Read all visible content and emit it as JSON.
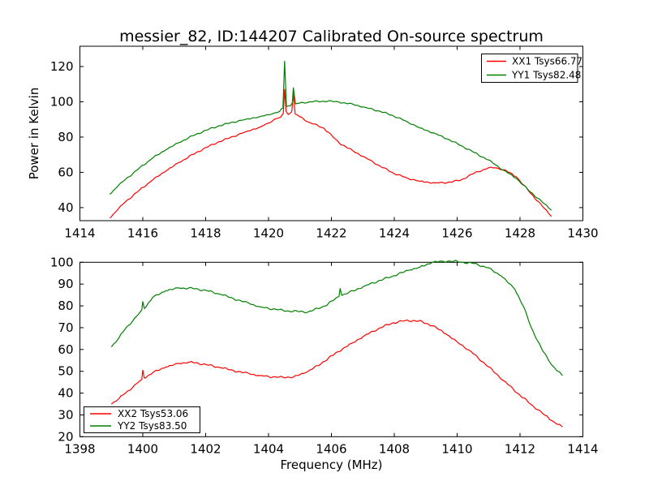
{
  "figure": {
    "title": "messier_82, ID:144207 Calibrated On-source spectrum"
  },
  "chart_data": [
    {
      "type": "line",
      "title": "messier_82, ID:144207 Calibrated On-source spectrum",
      "xlabel": "",
      "ylabel": "Power in Kelvin",
      "xlim": [
        1414,
        1430
      ],
      "ylim": [
        32.6,
        131.5
      ],
      "xticks": [
        1414,
        1416,
        1418,
        1420,
        1422,
        1424,
        1426,
        1428,
        1430
      ],
      "yticks": [
        40,
        60,
        80,
        100,
        120
      ],
      "grid": false,
      "legend": {
        "position": "upper right",
        "entries": [
          {
            "label": "XX1 Tsys66.77",
            "color": "#ff0000"
          },
          {
            "label": "YY1 Tsys82.48",
            "color": "#008000"
          }
        ]
      },
      "series": [
        {
          "name": "XX1 Tsys66.77",
          "color": "#ff0000",
          "points": [
            [
              1414.95,
              34.1
            ],
            [
              1415.2,
              38.8
            ],
            [
              1415.45,
              43.3
            ],
            [
              1415.9,
              50.0
            ],
            [
              1416.31,
              55.6
            ],
            [
              1416.75,
              61.0
            ],
            [
              1417.17,
              65.7
            ],
            [
              1417.6,
              70.2
            ],
            [
              1418.03,
              74.2
            ],
            [
              1418.45,
              77.5
            ],
            [
              1418.89,
              80.4
            ],
            [
              1419.3,
              83.2
            ],
            [
              1419.75,
              85.8
            ],
            [
              1420.0,
              88.0
            ],
            [
              1420.2,
              90.3
            ],
            [
              1420.38,
              91.2
            ],
            [
              1420.47,
              93.5
            ],
            [
              1420.51,
              107.0
            ],
            [
              1420.56,
              94.5
            ],
            [
              1420.63,
              92.8
            ],
            [
              1420.74,
              94.5
            ],
            [
              1420.79,
              104.5
            ],
            [
              1420.85,
              93.0
            ],
            [
              1421.0,
              91.5
            ],
            [
              1421.3,
              88.3
            ],
            [
              1421.76,
              85.1
            ],
            [
              1422.25,
              76.6
            ],
            [
              1422.7,
              72.0
            ],
            [
              1423.11,
              68.1
            ],
            [
              1423.55,
              63.5
            ],
            [
              1423.97,
              59.6
            ],
            [
              1424.4,
              56.8
            ],
            [
              1424.83,
              54.9
            ],
            [
              1425.3,
              54.0
            ],
            [
              1425.69,
              54.2
            ],
            [
              1426.12,
              55.6
            ],
            [
              1426.55,
              59.6
            ],
            [
              1426.98,
              62.4
            ],
            [
              1427.2,
              62.6
            ],
            [
              1427.5,
              61.5
            ],
            [
              1427.88,
              57.5
            ],
            [
              1428.27,
              49.5
            ],
            [
              1428.7,
              41.0
            ],
            [
              1429.0,
              35.0
            ]
          ]
        },
        {
          "name": "YY1 Tsys82.48",
          "color": "#008000",
          "points": [
            [
              1414.95,
              47.6
            ],
            [
              1415.2,
              52.0
            ],
            [
              1415.45,
              56.0
            ],
            [
              1415.9,
              62.5
            ],
            [
              1416.31,
              68.0
            ],
            [
              1416.75,
              73.0
            ],
            [
              1417.17,
              77.0
            ],
            [
              1417.6,
              80.8
            ],
            [
              1418.03,
              84.0
            ],
            [
              1418.45,
              86.5
            ],
            [
              1418.89,
              88.5
            ],
            [
              1419.3,
              90.2
            ],
            [
              1419.75,
              91.7
            ],
            [
              1420.1,
              93.0
            ],
            [
              1420.35,
              94.5
            ],
            [
              1420.46,
              96.5
            ],
            [
              1420.51,
              123.0
            ],
            [
              1420.57,
              97.3
            ],
            [
              1420.7,
              97.8
            ],
            [
              1420.76,
              99.5
            ],
            [
              1420.79,
              108.0
            ],
            [
              1420.86,
              98.8
            ],
            [
              1421.0,
              99.3
            ],
            [
              1421.3,
              100.0
            ],
            [
              1421.9,
              100.4
            ],
            [
              1422.25,
              99.8
            ],
            [
              1422.7,
              98.5
            ],
            [
              1423.11,
              96.7
            ],
            [
              1423.55,
              94.6
            ],
            [
              1423.97,
              92.1
            ],
            [
              1424.4,
              88.8
            ],
            [
              1424.83,
              85.1
            ],
            [
              1425.3,
              82.0
            ],
            [
              1425.69,
              78.9
            ],
            [
              1426.12,
              75.2
            ],
            [
              1426.55,
              71.2
            ],
            [
              1426.98,
              67.1
            ],
            [
              1427.2,
              64.5
            ],
            [
              1427.5,
              61.0
            ],
            [
              1427.88,
              56.6
            ],
            [
              1428.27,
              49.8
            ],
            [
              1428.7,
              43.3
            ],
            [
              1429.0,
              38.5
            ]
          ]
        }
      ]
    },
    {
      "type": "line",
      "title": "",
      "xlabel": "Frequency (MHz)",
      "ylabel": "",
      "xlim": [
        1398,
        1414
      ],
      "ylim": [
        20,
        100
      ],
      "xticks": [
        1398,
        1400,
        1402,
        1404,
        1406,
        1408,
        1410,
        1412,
        1414
      ],
      "yticks": [
        20,
        30,
        40,
        50,
        60,
        70,
        80,
        90,
        100
      ],
      "grid": false,
      "legend": {
        "position": "lower left",
        "entries": [
          {
            "label": "XX2 Tsys53.06",
            "color": "#ff0000"
          },
          {
            "label": "YY2 Tsys83.50",
            "color": "#008000"
          }
        ]
      },
      "series": [
        {
          "name": "XX2 Tsys53.06",
          "color": "#ff0000",
          "points": [
            [
              1399.0,
              35.0
            ],
            [
              1399.25,
              37.6
            ],
            [
              1399.45,
              40.0
            ],
            [
              1399.7,
              43.0
            ],
            [
              1399.88,
              45.3
            ],
            [
              1399.97,
              46.3
            ],
            [
              1400.0,
              50.5
            ],
            [
              1400.05,
              46.9
            ],
            [
              1400.31,
              49.3
            ],
            [
              1400.74,
              52.0
            ],
            [
              1401.17,
              53.6
            ],
            [
              1401.5,
              54.3
            ],
            [
              1402.03,
              53.0
            ],
            [
              1402.5,
              51.6
            ],
            [
              1402.89,
              50.3
            ],
            [
              1403.4,
              48.8
            ],
            [
              1403.75,
              48.0
            ],
            [
              1404.3,
              47.2
            ],
            [
              1404.8,
              47.4
            ],
            [
              1405.2,
              49.5
            ],
            [
              1405.57,
              52.6
            ],
            [
              1406.21,
              59.0
            ],
            [
              1406.64,
              62.8
            ],
            [
              1407.07,
              66.5
            ],
            [
              1407.5,
              69.6
            ],
            [
              1407.93,
              72.1
            ],
            [
              1408.36,
              73.3
            ],
            [
              1408.79,
              73.1
            ],
            [
              1409.22,
              70.9
            ],
            [
              1409.65,
              67.1
            ],
            [
              1410.0,
              63.5
            ],
            [
              1410.4,
              59.5
            ],
            [
              1411.0,
              52.0
            ],
            [
              1411.5,
              45.5
            ],
            [
              1412.0,
              39.0
            ],
            [
              1412.4,
              34.3
            ],
            [
              1412.8,
              29.8
            ],
            [
              1413.1,
              26.6
            ],
            [
              1413.35,
              24.5
            ]
          ]
        },
        {
          "name": "YY2 Tsys83.50",
          "color": "#008000",
          "points": [
            [
              1399.0,
              61.2
            ],
            [
              1399.25,
              65.5
            ],
            [
              1399.45,
              69.6
            ],
            [
              1399.7,
              73.5
            ],
            [
              1399.88,
              76.5
            ],
            [
              1399.97,
              78.2
            ],
            [
              1400.0,
              82.0
            ],
            [
              1400.05,
              78.8
            ],
            [
              1400.31,
              83.8
            ],
            [
              1400.74,
              87.0
            ],
            [
              1401.17,
              88.2
            ],
            [
              1401.6,
              88.0
            ],
            [
              1402.03,
              87.0
            ],
            [
              1402.5,
              85.2
            ],
            [
              1402.89,
              83.3
            ],
            [
              1403.4,
              81.0
            ],
            [
              1403.75,
              79.5
            ],
            [
              1404.3,
              78.2
            ],
            [
              1404.61,
              77.7
            ],
            [
              1405.26,
              77.2
            ],
            [
              1405.8,
              80.0
            ],
            [
              1406.24,
              84.3
            ],
            [
              1406.28,
              88.0
            ],
            [
              1406.33,
              84.8
            ],
            [
              1406.7,
              86.9
            ],
            [
              1407.1,
              89.4
            ],
            [
              1407.97,
              93.8
            ],
            [
              1408.5,
              96.5
            ],
            [
              1408.82,
              97.8
            ],
            [
              1409.2,
              99.9
            ],
            [
              1409.52,
              100.5
            ],
            [
              1409.9,
              100.5
            ],
            [
              1410.2,
              100.0
            ],
            [
              1410.55,
              99.4
            ],
            [
              1410.97,
              97.5
            ],
            [
              1411.4,
              93.8
            ],
            [
              1411.84,
              87.5
            ],
            [
              1412.1,
              80.0
            ],
            [
              1412.36,
              70.0
            ],
            [
              1412.7,
              60.0
            ],
            [
              1413.0,
              53.0
            ],
            [
              1413.35,
              48.0
            ]
          ]
        }
      ]
    }
  ]
}
